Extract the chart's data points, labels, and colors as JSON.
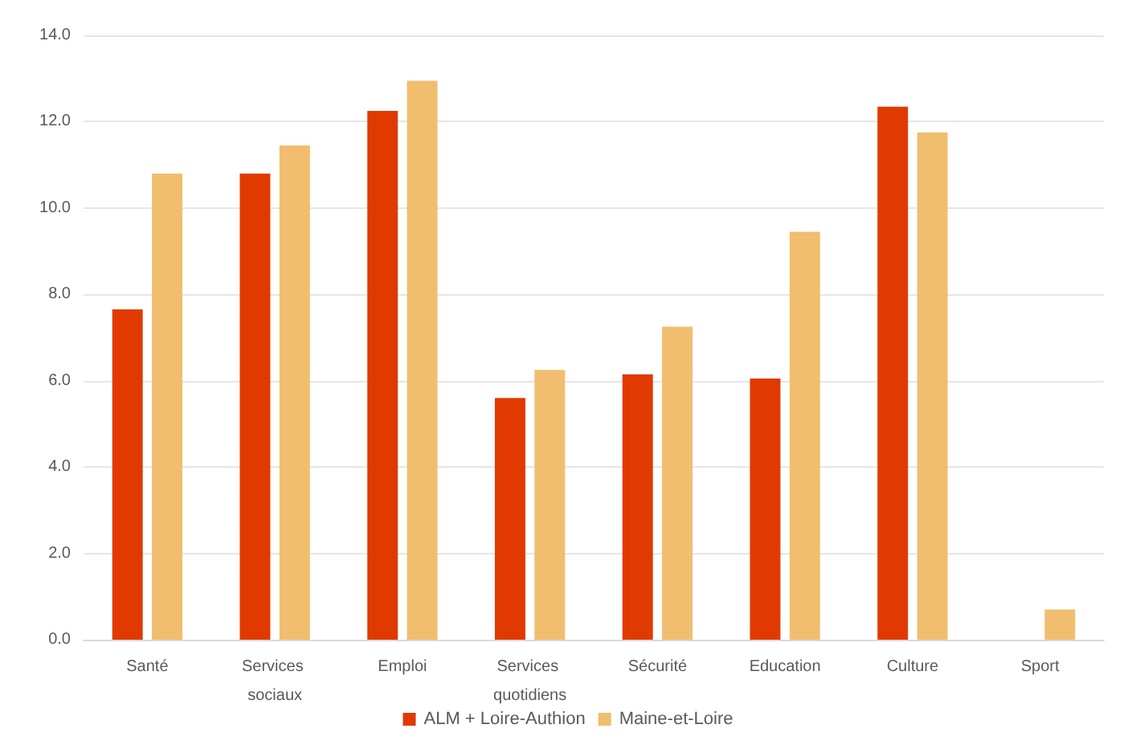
{
  "chart_data": {
    "type": "bar",
    "categories": [
      "Santé",
      "Services sociaux",
      "Emploi",
      "Services quotidiens",
      "Sécurité",
      "Education",
      "Culture",
      "Sport"
    ],
    "series": [
      {
        "name": "ALM + Loire-Authion",
        "color": "#e03a00",
        "values": [
          7.65,
          10.8,
          12.25,
          5.6,
          6.15,
          6.05,
          12.35,
          null
        ]
      },
      {
        "name": "Maine-et-Loire",
        "color": "#f0be6e",
        "values": [
          10.8,
          11.45,
          12.95,
          6.25,
          7.25,
          9.45,
          11.75,
          0.7
        ]
      }
    ],
    "ylim": [
      0,
      14
    ],
    "yticks": [
      {
        "value": 0,
        "label": "0.0"
      },
      {
        "value": 2,
        "label": "2.0"
      },
      {
        "value": 4,
        "label": "4.0"
      },
      {
        "value": 6,
        "label": "6.0"
      },
      {
        "value": 8,
        "label": "8.0"
      },
      {
        "value": 10,
        "label": "10.0"
      },
      {
        "value": 12,
        "label": "12.0"
      },
      {
        "value": 14,
        "label": "14.0"
      }
    ],
    "grid": "y",
    "legend": "bottom"
  }
}
